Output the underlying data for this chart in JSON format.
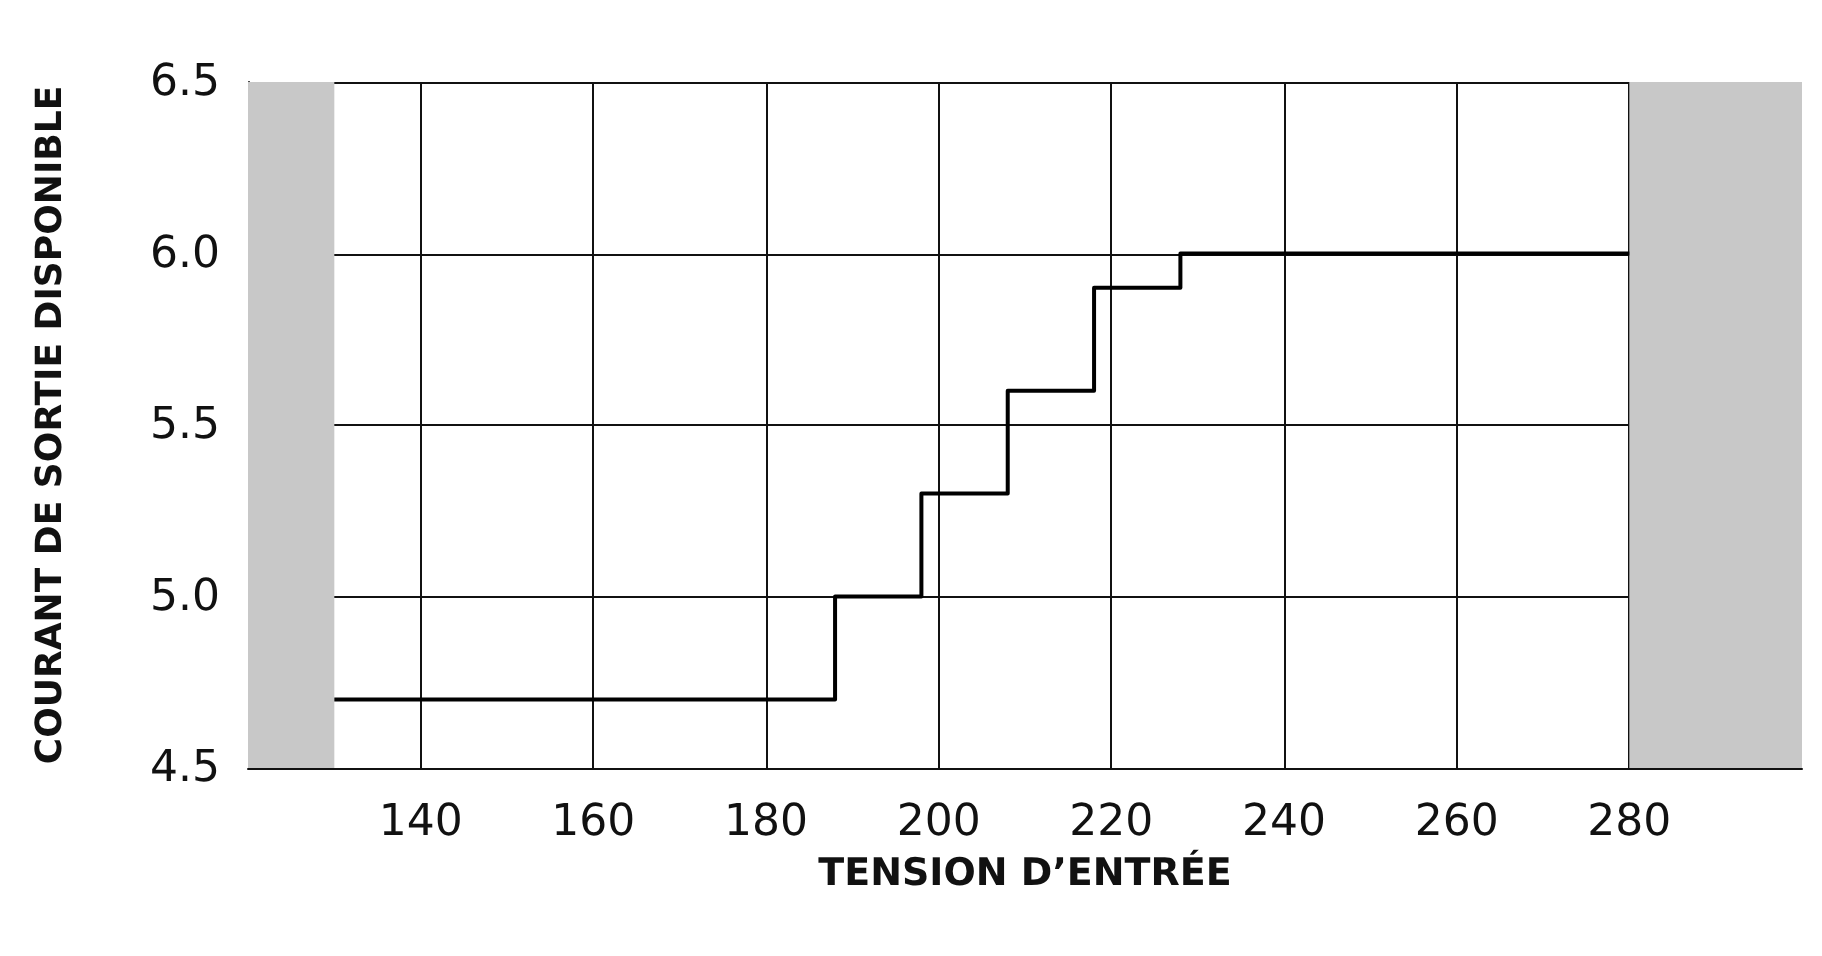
{
  "chart_data": {
    "type": "step",
    "xlabel": "TENSION D’ENTRÉE",
    "ylabel": "COURANT DE SORTIE DISPONIBLE",
    "x": [
      130,
      188,
      198,
      208,
      218,
      228,
      280
    ],
    "series": [
      {
        "color": "#000000",
        "values": [
          4.7,
          5.0,
          5.3,
          5.6,
          5.9,
          6.0,
          6.0
        ]
      }
    ],
    "xlim": [
      120,
      300
    ],
    "xticks": [
      140,
      160,
      180,
      200,
      220,
      240,
      260,
      280
    ],
    "ylim": [
      4.5,
      6.5
    ],
    "yticks": [
      {
        "value": 4.5,
        "label": "4.5"
      },
      {
        "value": 5.0,
        "label": "5.0"
      },
      {
        "value": 5.5,
        "label": "5.5"
      },
      {
        "value": 6.0,
        "label": "6.0"
      },
      {
        "value": 6.5,
        "label": "6.5"
      }
    ],
    "bands": [
      {
        "axis": "x",
        "from": 120,
        "to": 130,
        "color": "#c8c8c8"
      },
      {
        "axis": "x",
        "from": 280,
        "to": 300,
        "color": "#c8c8c8"
      }
    ],
    "grid": true,
    "marker": "none",
    "line_style": "solid"
  }
}
